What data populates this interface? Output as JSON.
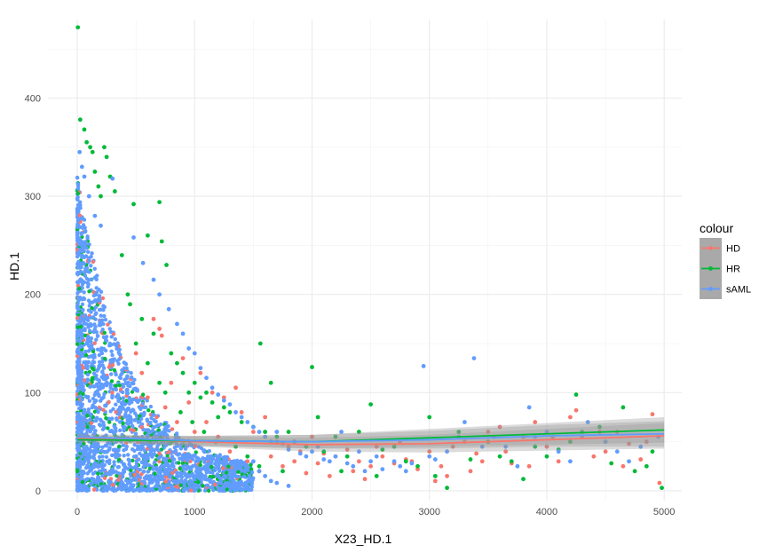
{
  "chart_data": {
    "type": "scatter",
    "xlabel": "X23_HD.1",
    "ylabel": "HD.1",
    "xlim": [
      -250,
      5150
    ],
    "ylim": [
      -10,
      480
    ],
    "x_ticks": [
      0,
      1000,
      2000,
      3000,
      4000,
      5000
    ],
    "x_tick_labels": [
      "0",
      "1000",
      "2000",
      "3000",
      "4000",
      "5000"
    ],
    "y_ticks": [
      0,
      100,
      200,
      300,
      400
    ],
    "y_tick_labels": [
      "0",
      "100",
      "200",
      "300",
      "400"
    ],
    "grid": true,
    "legend": {
      "title": "colour",
      "position": "right"
    },
    "series": [
      {
        "name": "HD",
        "color": "#F8766D",
        "smooth": [
          [
            0,
            54
          ],
          [
            1000,
            50
          ],
          [
            2000,
            47
          ],
          [
            3000,
            48
          ],
          [
            4000,
            52
          ],
          [
            5000,
            56
          ]
        ],
        "points": [
          [
            650,
            175
          ],
          [
            700,
            165
          ],
          [
            720,
            158
          ],
          [
            900,
            135
          ],
          [
            1050,
            120
          ],
          [
            1150,
            100
          ],
          [
            1250,
            95
          ],
          [
            1350,
            105
          ],
          [
            1400,
            80
          ],
          [
            1500,
            60
          ],
          [
            1600,
            75
          ],
          [
            1700,
            50
          ],
          [
            1800,
            45
          ],
          [
            1900,
            40
          ],
          [
            2000,
            55
          ],
          [
            2100,
            38
          ],
          [
            2200,
            35
          ],
          [
            2300,
            42
          ],
          [
            2400,
            30
          ],
          [
            2500,
            25
          ],
          [
            2600,
            35
          ],
          [
            2700,
            28
          ],
          [
            2800,
            32
          ],
          [
            2850,
            30
          ],
          [
            2900,
            22
          ],
          [
            3000,
            40
          ],
          [
            3100,
            25
          ],
          [
            3200,
            45
          ],
          [
            3300,
            50
          ],
          [
            3400,
            38
          ],
          [
            3500,
            60
          ],
          [
            3600,
            65
          ],
          [
            3700,
            28
          ],
          [
            3800,
            55
          ],
          [
            3900,
            70
          ],
          [
            4000,
            45
          ],
          [
            4100,
            30
          ],
          [
            4200,
            75
          ],
          [
            4300,
            55
          ],
          [
            4400,
            35
          ],
          [
            4500,
            40
          ],
          [
            4600,
            60
          ],
          [
            4700,
            48
          ],
          [
            4800,
            32
          ],
          [
            4900,
            78
          ],
          [
            4960,
            8
          ],
          [
            800,
            110
          ],
          [
            950,
            90
          ],
          [
            1100,
            70
          ],
          [
            1300,
            40
          ],
          [
            1450,
            30
          ],
          [
            1550,
            20
          ],
          [
            1750,
            25
          ],
          [
            1950,
            18
          ],
          [
            2150,
            15
          ],
          [
            2350,
            20
          ],
          [
            2450,
            12
          ],
          [
            2550,
            45
          ],
          [
            2750,
            50
          ],
          [
            3050,
            10
          ],
          [
            3150,
            15
          ],
          [
            3350,
            20
          ],
          [
            3450,
            30
          ],
          [
            3650,
            40
          ],
          [
            3850,
            25
          ],
          [
            4050,
            55
          ],
          [
            4250,
            82
          ],
          [
            4450,
            60
          ],
          [
            4650,
            25
          ],
          [
            4850,
            50
          ],
          [
            500,
            140
          ],
          [
            550,
            120
          ],
          [
            600,
            95
          ],
          [
            750,
            85
          ],
          [
            850,
            70
          ],
          [
            1000,
            60
          ],
          [
            1200,
            55
          ],
          [
            1650,
            35
          ],
          [
            1850,
            30
          ],
          [
            2050,
            28
          ]
        ]
      },
      {
        "name": "HR",
        "color": "#00BA38",
        "smooth": [
          [
            0,
            52
          ],
          [
            1000,
            51
          ],
          [
            2000,
            50
          ],
          [
            3000,
            54
          ],
          [
            4000,
            58
          ],
          [
            5000,
            62
          ]
        ],
        "points": [
          [
            5,
            472
          ],
          [
            25,
            378
          ],
          [
            60,
            368
          ],
          [
            80,
            355
          ],
          [
            110,
            350
          ],
          [
            130,
            345
          ],
          [
            150,
            325
          ],
          [
            180,
            310
          ],
          [
            200,
            300
          ],
          [
            230,
            350
          ],
          [
            250,
            340
          ],
          [
            280,
            320
          ],
          [
            320,
            305
          ],
          [
            480,
            292
          ],
          [
            700,
            294
          ],
          [
            720,
            254
          ],
          [
            760,
            230
          ],
          [
            600,
            260
          ],
          [
            430,
            200
          ],
          [
            380,
            240
          ],
          [
            450,
            190
          ],
          [
            550,
            175
          ],
          [
            650,
            160
          ],
          [
            800,
            140
          ],
          [
            850,
            130
          ],
          [
            900,
            120
          ],
          [
            1000,
            110
          ],
          [
            1100,
            100
          ],
          [
            1150,
            90
          ],
          [
            1250,
            85
          ],
          [
            1300,
            80
          ],
          [
            1400,
            70
          ],
          [
            1500,
            65
          ],
          [
            1560,
            150
          ],
          [
            1600,
            60
          ],
          [
            1650,
            110
          ],
          [
            1700,
            55
          ],
          [
            1800,
            60
          ],
          [
            1850,
            50
          ],
          [
            1950,
            45
          ],
          [
            2000,
            126
          ],
          [
            2050,
            75
          ],
          [
            2100,
            40
          ],
          [
            2200,
            55
          ],
          [
            2300,
            35
          ],
          [
            2400,
            60
          ],
          [
            2500,
            88
          ],
          [
            2600,
            42
          ],
          [
            2700,
            45
          ],
          [
            2800,
            30
          ],
          [
            2900,
            25
          ],
          [
            3000,
            75
          ],
          [
            3050,
            15
          ],
          [
            3150,
            3
          ],
          [
            3250,
            60
          ],
          [
            3350,
            32
          ],
          [
            3500,
            50
          ],
          [
            3600,
            35
          ],
          [
            3700,
            30
          ],
          [
            3800,
            12
          ],
          [
            3900,
            45
          ],
          [
            4000,
            35
          ],
          [
            4100,
            42
          ],
          [
            4200,
            50
          ],
          [
            4250,
            98
          ],
          [
            4300,
            60
          ],
          [
            4450,
            65
          ],
          [
            4550,
            28
          ],
          [
            4650,
            85
          ],
          [
            4750,
            20
          ],
          [
            4850,
            25
          ],
          [
            4900,
            40
          ],
          [
            4980,
            3
          ],
          [
            950,
            100
          ],
          [
            1050,
            95
          ],
          [
            1200,
            75
          ],
          [
            1350,
            45
          ],
          [
            1450,
            35
          ],
          [
            1550,
            25
          ],
          [
            1750,
            20
          ],
          [
            500,
            150
          ],
          [
            600,
            130
          ],
          [
            700,
            110
          ],
          [
            750,
            100
          ],
          [
            880,
            80
          ],
          [
            980,
            70
          ],
          [
            1080,
            60
          ],
          [
            1180,
            50
          ],
          [
            2250,
            20
          ],
          [
            2550,
            15
          ]
        ]
      },
      {
        "name": "sAML",
        "color": "#619CFF",
        "smooth": [
          [
            0,
            55
          ],
          [
            1000,
            51
          ],
          [
            2000,
            50
          ],
          [
            3000,
            52
          ],
          [
            4000,
            56
          ],
          [
            5000,
            58
          ]
        ],
        "points": [
          [
            20,
            345
          ],
          [
            40,
            330
          ],
          [
            60,
            320
          ],
          [
            100,
            300
          ],
          [
            150,
            280
          ],
          [
            200,
            270
          ],
          [
            300,
            318
          ],
          [
            480,
            258
          ],
          [
            560,
            232
          ],
          [
            650,
            215
          ],
          [
            700,
            200
          ],
          [
            780,
            185
          ],
          [
            850,
            170
          ],
          [
            900,
            160
          ],
          [
            950,
            145
          ],
          [
            1000,
            140
          ],
          [
            1050,
            125
          ],
          [
            1100,
            115
          ],
          [
            1150,
            105
          ],
          [
            1200,
            98
          ],
          [
            1250,
            92
          ],
          [
            1300,
            88
          ],
          [
            1350,
            80
          ],
          [
            1400,
            75
          ],
          [
            1450,
            70
          ],
          [
            1500,
            65
          ],
          [
            1550,
            60
          ],
          [
            1600,
            55
          ],
          [
            1650,
            50
          ],
          [
            1700,
            60
          ],
          [
            1750,
            48
          ],
          [
            1800,
            42
          ],
          [
            1850,
            50
          ],
          [
            1900,
            38
          ],
          [
            1950,
            35
          ],
          [
            2000,
            40
          ],
          [
            2050,
            45
          ],
          [
            2100,
            32
          ],
          [
            2150,
            30
          ],
          [
            2200,
            35
          ],
          [
            2250,
            60
          ],
          [
            2300,
            28
          ],
          [
            2350,
            25
          ],
          [
            2400,
            40
          ],
          [
            2450,
            20
          ],
          [
            2500,
            30
          ],
          [
            2550,
            35
          ],
          [
            2600,
            22
          ],
          [
            2700,
            30
          ],
          [
            2750,
            25
          ],
          [
            2800,
            20
          ],
          [
            2850,
            28
          ],
          [
            2950,
            127
          ],
          [
            3000,
            35
          ],
          [
            3050,
            32
          ],
          [
            3150,
            40
          ],
          [
            3250,
            55
          ],
          [
            3300,
            70
          ],
          [
            3380,
            135
          ],
          [
            3450,
            45
          ],
          [
            3550,
            55
          ],
          [
            3650,
            45
          ],
          [
            3750,
            25
          ],
          [
            3850,
            85
          ],
          [
            3900,
            55
          ],
          [
            4000,
            60
          ],
          [
            4100,
            40
          ],
          [
            4200,
            30
          ],
          [
            4350,
            70
          ],
          [
            4500,
            50
          ],
          [
            4600,
            40
          ],
          [
            4700,
            30
          ],
          [
            4800,
            45
          ],
          [
            4950,
            55
          ],
          [
            1500,
            30
          ],
          [
            1550,
            20
          ],
          [
            1600,
            15
          ],
          [
            1650,
            10
          ],
          [
            1700,
            8
          ],
          [
            1800,
            5
          ]
        ]
      }
    ]
  }
}
